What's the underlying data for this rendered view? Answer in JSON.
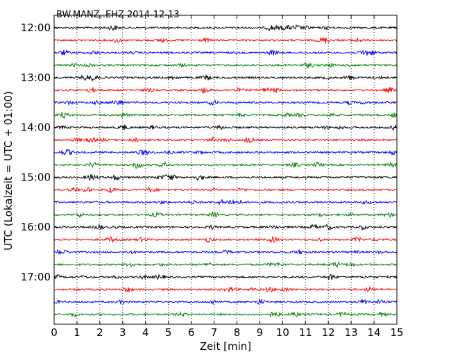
{
  "chart_data": {
    "type": "line",
    "title": "BW.MANZ..EHZ 2014-12-13",
    "xlabel": "Zeit  [min]",
    "ylabel": "UTC (Lokalzeit = UTC + 01:00)",
    "xlim": [
      0,
      15
    ],
    "x_ticks": [
      "0",
      "1",
      "2",
      "3",
      "4",
      "5",
      "6",
      "7",
      "8",
      "9",
      "10",
      "11",
      "12",
      "13",
      "14",
      "15"
    ],
    "y_tick_labels": [
      "12:00",
      "13:00",
      "14:00",
      "15:00",
      "16:00",
      "17:00"
    ],
    "grid": {
      "vertical_dotted": true,
      "horizontal": false
    },
    "trace_interval_min": 15,
    "start_time": "12:00",
    "trace_count": 24,
    "trace_colors": [
      "#000000",
      "#ff0000",
      "#0000ff",
      "#007f00"
    ],
    "trace_start_times": [
      "12:00",
      "12:15",
      "12:30",
      "12:45",
      "13:00",
      "13:15",
      "13:30",
      "13:45",
      "14:00",
      "14:15",
      "14:30",
      "14:45",
      "15:00",
      "15:15",
      "15:30",
      "15:45",
      "16:00",
      "16:15",
      "16:30",
      "16:45",
      "17:00",
      "17:15",
      "17:30",
      "17:45"
    ]
  }
}
